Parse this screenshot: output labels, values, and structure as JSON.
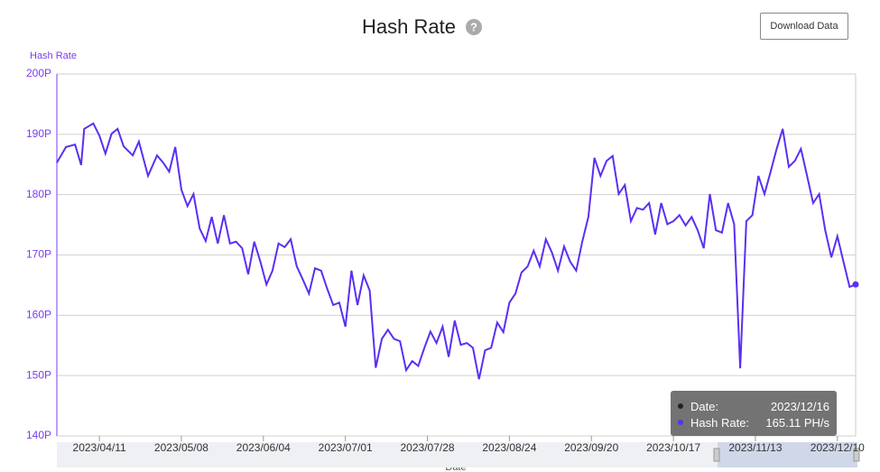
{
  "download_button": "Download Data",
  "chart_data": {
    "type": "line",
    "title": "Hash Rate",
    "y_label": "Hash Rate",
    "x_label": "Date",
    "ylim": [
      140,
      200
    ],
    "yticks": [
      {
        "value": 140,
        "label": "140P"
      },
      {
        "value": 150,
        "label": "150P"
      },
      {
        "value": 160,
        "label": "160P"
      },
      {
        "value": 170,
        "label": "170P"
      },
      {
        "value": 180,
        "label": "180P"
      },
      {
        "value": 190,
        "label": "190P"
      },
      {
        "value": 200,
        "label": "200P"
      }
    ],
    "xlim": [
      "2023/03/28",
      "2023/12/16"
    ],
    "xticks": [
      "2023/04/11",
      "2023/05/08",
      "2023/06/04",
      "2023/07/01",
      "2023/07/28",
      "2023/08/24",
      "2023/09/20",
      "2023/10/17",
      "2023/11/13",
      "2023/12/10"
    ],
    "grid": true,
    "x": [
      "2023/03/28",
      "2023/03/31",
      "2023/04/03",
      "2023/04/05",
      "2023/04/06",
      "2023/04/09",
      "2023/04/11",
      "2023/04/13",
      "2023/04/15",
      "2023/04/17",
      "2023/04/19",
      "2023/04/22",
      "2023/04/24",
      "2023/04/27",
      "2023/04/30",
      "2023/05/02",
      "2023/05/04",
      "2023/05/06",
      "2023/05/08",
      "2023/05/10",
      "2023/05/12",
      "2023/05/14",
      "2023/05/16",
      "2023/05/18",
      "2023/05/20",
      "2023/05/22",
      "2023/05/24",
      "2023/05/26",
      "2023/05/28",
      "2023/05/30",
      "2023/06/01",
      "2023/06/03",
      "2023/06/05",
      "2023/06/07",
      "2023/06/09",
      "2023/06/11",
      "2023/06/13",
      "2023/06/15",
      "2023/06/17",
      "2023/06/19",
      "2023/06/21",
      "2023/06/23",
      "2023/06/25",
      "2023/06/27",
      "2023/06/29",
      "2023/07/01",
      "2023/07/03",
      "2023/07/05",
      "2023/07/07",
      "2023/07/09",
      "2023/07/11",
      "2023/07/13",
      "2023/07/15",
      "2023/07/17",
      "2023/07/19",
      "2023/07/21",
      "2023/07/23",
      "2023/07/25",
      "2023/07/27",
      "2023/07/29",
      "2023/07/31",
      "2023/08/02",
      "2023/08/04",
      "2023/08/06",
      "2023/08/08",
      "2023/08/10",
      "2023/08/12",
      "2023/08/14",
      "2023/08/16",
      "2023/08/18",
      "2023/08/20",
      "2023/08/22",
      "2023/08/24",
      "2023/08/26",
      "2023/08/28",
      "2023/08/30",
      "2023/09/01",
      "2023/09/03",
      "2023/09/05",
      "2023/09/07",
      "2023/09/09",
      "2023/09/11",
      "2023/09/13",
      "2023/09/15",
      "2023/09/17",
      "2023/09/19",
      "2023/09/21",
      "2023/09/23",
      "2023/09/25",
      "2023/09/27",
      "2023/09/29",
      "2023/10/01",
      "2023/10/03",
      "2023/10/05",
      "2023/10/07",
      "2023/10/09",
      "2023/10/11",
      "2023/10/13",
      "2023/10/15",
      "2023/10/17",
      "2023/10/19",
      "2023/10/21",
      "2023/10/23",
      "2023/10/25",
      "2023/10/27",
      "2023/10/29",
      "2023/10/31",
      "2023/11/02",
      "2023/11/04",
      "2023/11/06",
      "2023/11/08",
      "2023/11/10",
      "2023/11/12",
      "2023/11/14",
      "2023/11/16",
      "2023/11/18",
      "2023/11/20",
      "2023/11/22",
      "2023/11/24",
      "2023/11/26",
      "2023/11/28",
      "2023/11/30",
      "2023/12/02",
      "2023/12/04",
      "2023/12/06",
      "2023/12/08",
      "2023/12/10",
      "2023/12/12",
      "2023/12/14",
      "2023/12/16"
    ],
    "series": [
      {
        "name": "Hash Rate",
        "color": "#5b2ff2",
        "values": [
          185.3,
          187.9,
          188.3,
          184.9,
          190.9,
          191.8,
          189.8,
          186.8,
          190.1,
          190.9,
          188.0,
          186.5,
          188.8,
          183.1,
          186.5,
          185.3,
          183.8,
          187.9,
          180.8,
          178.1,
          180.1,
          174.4,
          172.3,
          176.3,
          171.9,
          176.6,
          171.9,
          172.2,
          171.1,
          166.8,
          172.2,
          168.9,
          165.1,
          167.4,
          171.9,
          171.3,
          172.6,
          168.1,
          165.9,
          163.6,
          167.8,
          167.4,
          164.4,
          161.7,
          162.1,
          158.1,
          167.4,
          161.7,
          166.6,
          164.1,
          151.3,
          156.1,
          157.6,
          156.1,
          155.7,
          150.9,
          152.4,
          151.6,
          154.6,
          157.3,
          155.4,
          158.1,
          153.1,
          159.1,
          155.1,
          155.4,
          154.6,
          149.4,
          154.2,
          154.6,
          158.8,
          157.2,
          162.1,
          163.6,
          167.1,
          168.1,
          170.7,
          168.1,
          172.6,
          170.4,
          167.4,
          171.4,
          168.9,
          167.4,
          172.2,
          176.3,
          186.1,
          183.1,
          185.6,
          186.4,
          180.1,
          181.6,
          175.6,
          177.8,
          177.5,
          178.6,
          173.4,
          178.6,
          175.1,
          175.6,
          176.6,
          174.9,
          176.3,
          174.1,
          171.1,
          180.1,
          174.1,
          173.7,
          178.6,
          175.1,
          151.2,
          175.6,
          176.6,
          183.1,
          180.1,
          183.8,
          187.6,
          190.9,
          184.6,
          185.6,
          187.6,
          183.1,
          178.6,
          180.1,
          174.1,
          169.6,
          173.1,
          168.9,
          164.7,
          165.11
        ]
      }
    ],
    "tooltip": {
      "date_label": "Date:",
      "date": "2023/12/16",
      "value_label": "Hash Rate:",
      "value": "165.11 PH/s"
    }
  }
}
